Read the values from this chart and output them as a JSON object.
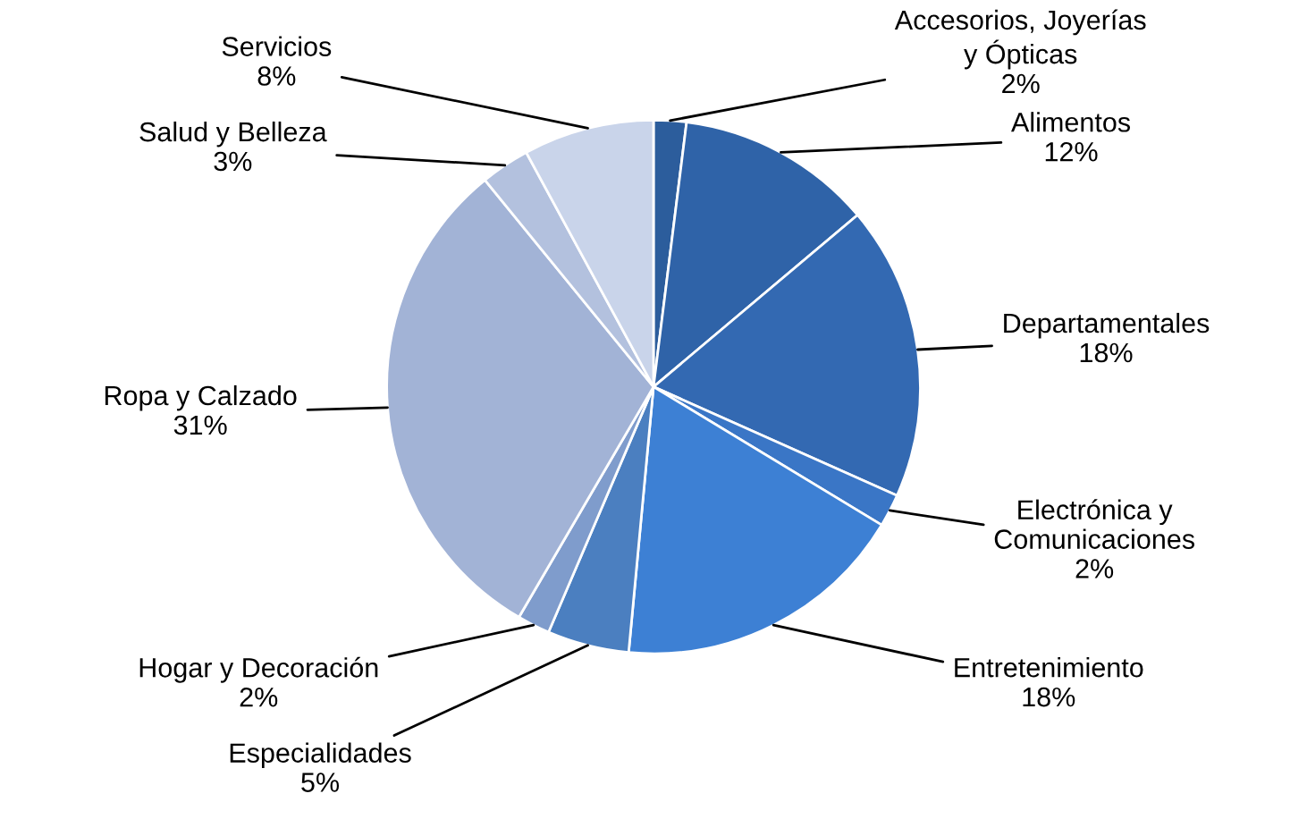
{
  "chart_data": {
    "type": "pie",
    "categories": [
      "Accesorios, Joyerías\ny Ópticas",
      "Alimentos",
      "Departamentales",
      "Electrónica y\nComunicaciones",
      "Entretenimiento",
      "Especialidades",
      "Hogar y Decoración",
      "Ropa y Calzado",
      "Salud y Belleza",
      "Servicios"
    ],
    "values": [
      2,
      12,
      18,
      2,
      18,
      5,
      2,
      31,
      3,
      8
    ],
    "value_labels": [
      "2%",
      "12%",
      "18%",
      "2%",
      "18%",
      "5%",
      "2%",
      "31%",
      "3%",
      "8%"
    ],
    "colors": [
      "#2c5d9c",
      "#2f63a8",
      "#3369b2",
      "#3a76c6",
      "#3d80d4",
      "#4b7fc0",
      "#7f9ccc",
      "#a2b3d6",
      "#b3c1de",
      "#c9d4ea"
    ],
    "legend": false
  }
}
